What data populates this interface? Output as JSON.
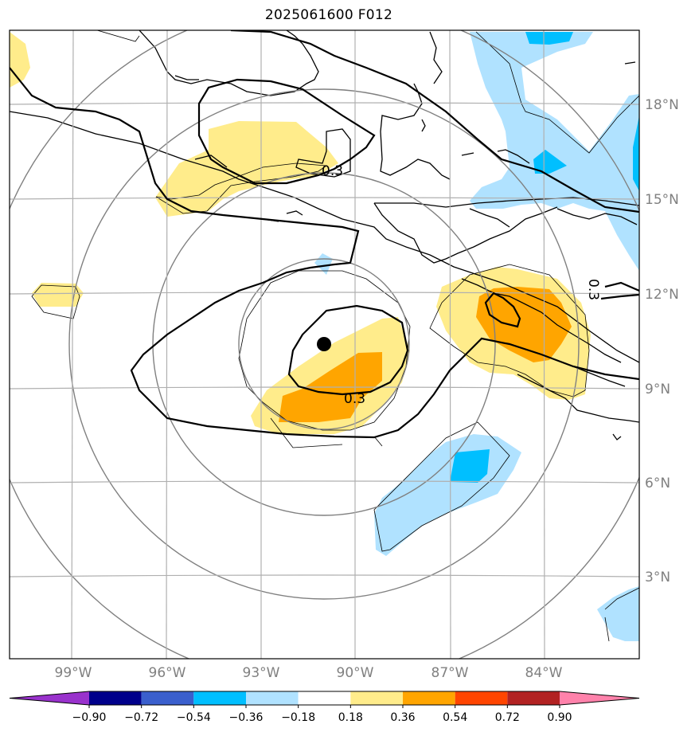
{
  "title": "2025061600 F012",
  "lat_labels": [
    "18°N",
    "15°N",
    "12°N",
    "9°N",
    "6°N",
    "3°N"
  ],
  "lon_labels": [
    "99°W",
    "96°W",
    "93°W",
    "90°W",
    "87°W",
    "84°W"
  ],
  "colorbar": {
    "tick_labels": [
      "−0.90",
      "−0.72",
      "−0.54",
      "−0.36",
      "−0.18",
      "0.18",
      "0.36",
      "0.54",
      "0.72",
      "0.90"
    ],
    "colors": [
      "#9932CC",
      "#00008B",
      "#3A5FCD",
      "#00BFFF",
      "#B0E2FF",
      "#FFFFFF",
      "#FFEC8B",
      "#FFA500",
      "#FF4500",
      "#B22222",
      "#FF82AB"
    ]
  },
  "contour_labels": [
    "0.3",
    "0.3",
    "0.3"
  ],
  "storm_center_marker": "filled-circle"
}
